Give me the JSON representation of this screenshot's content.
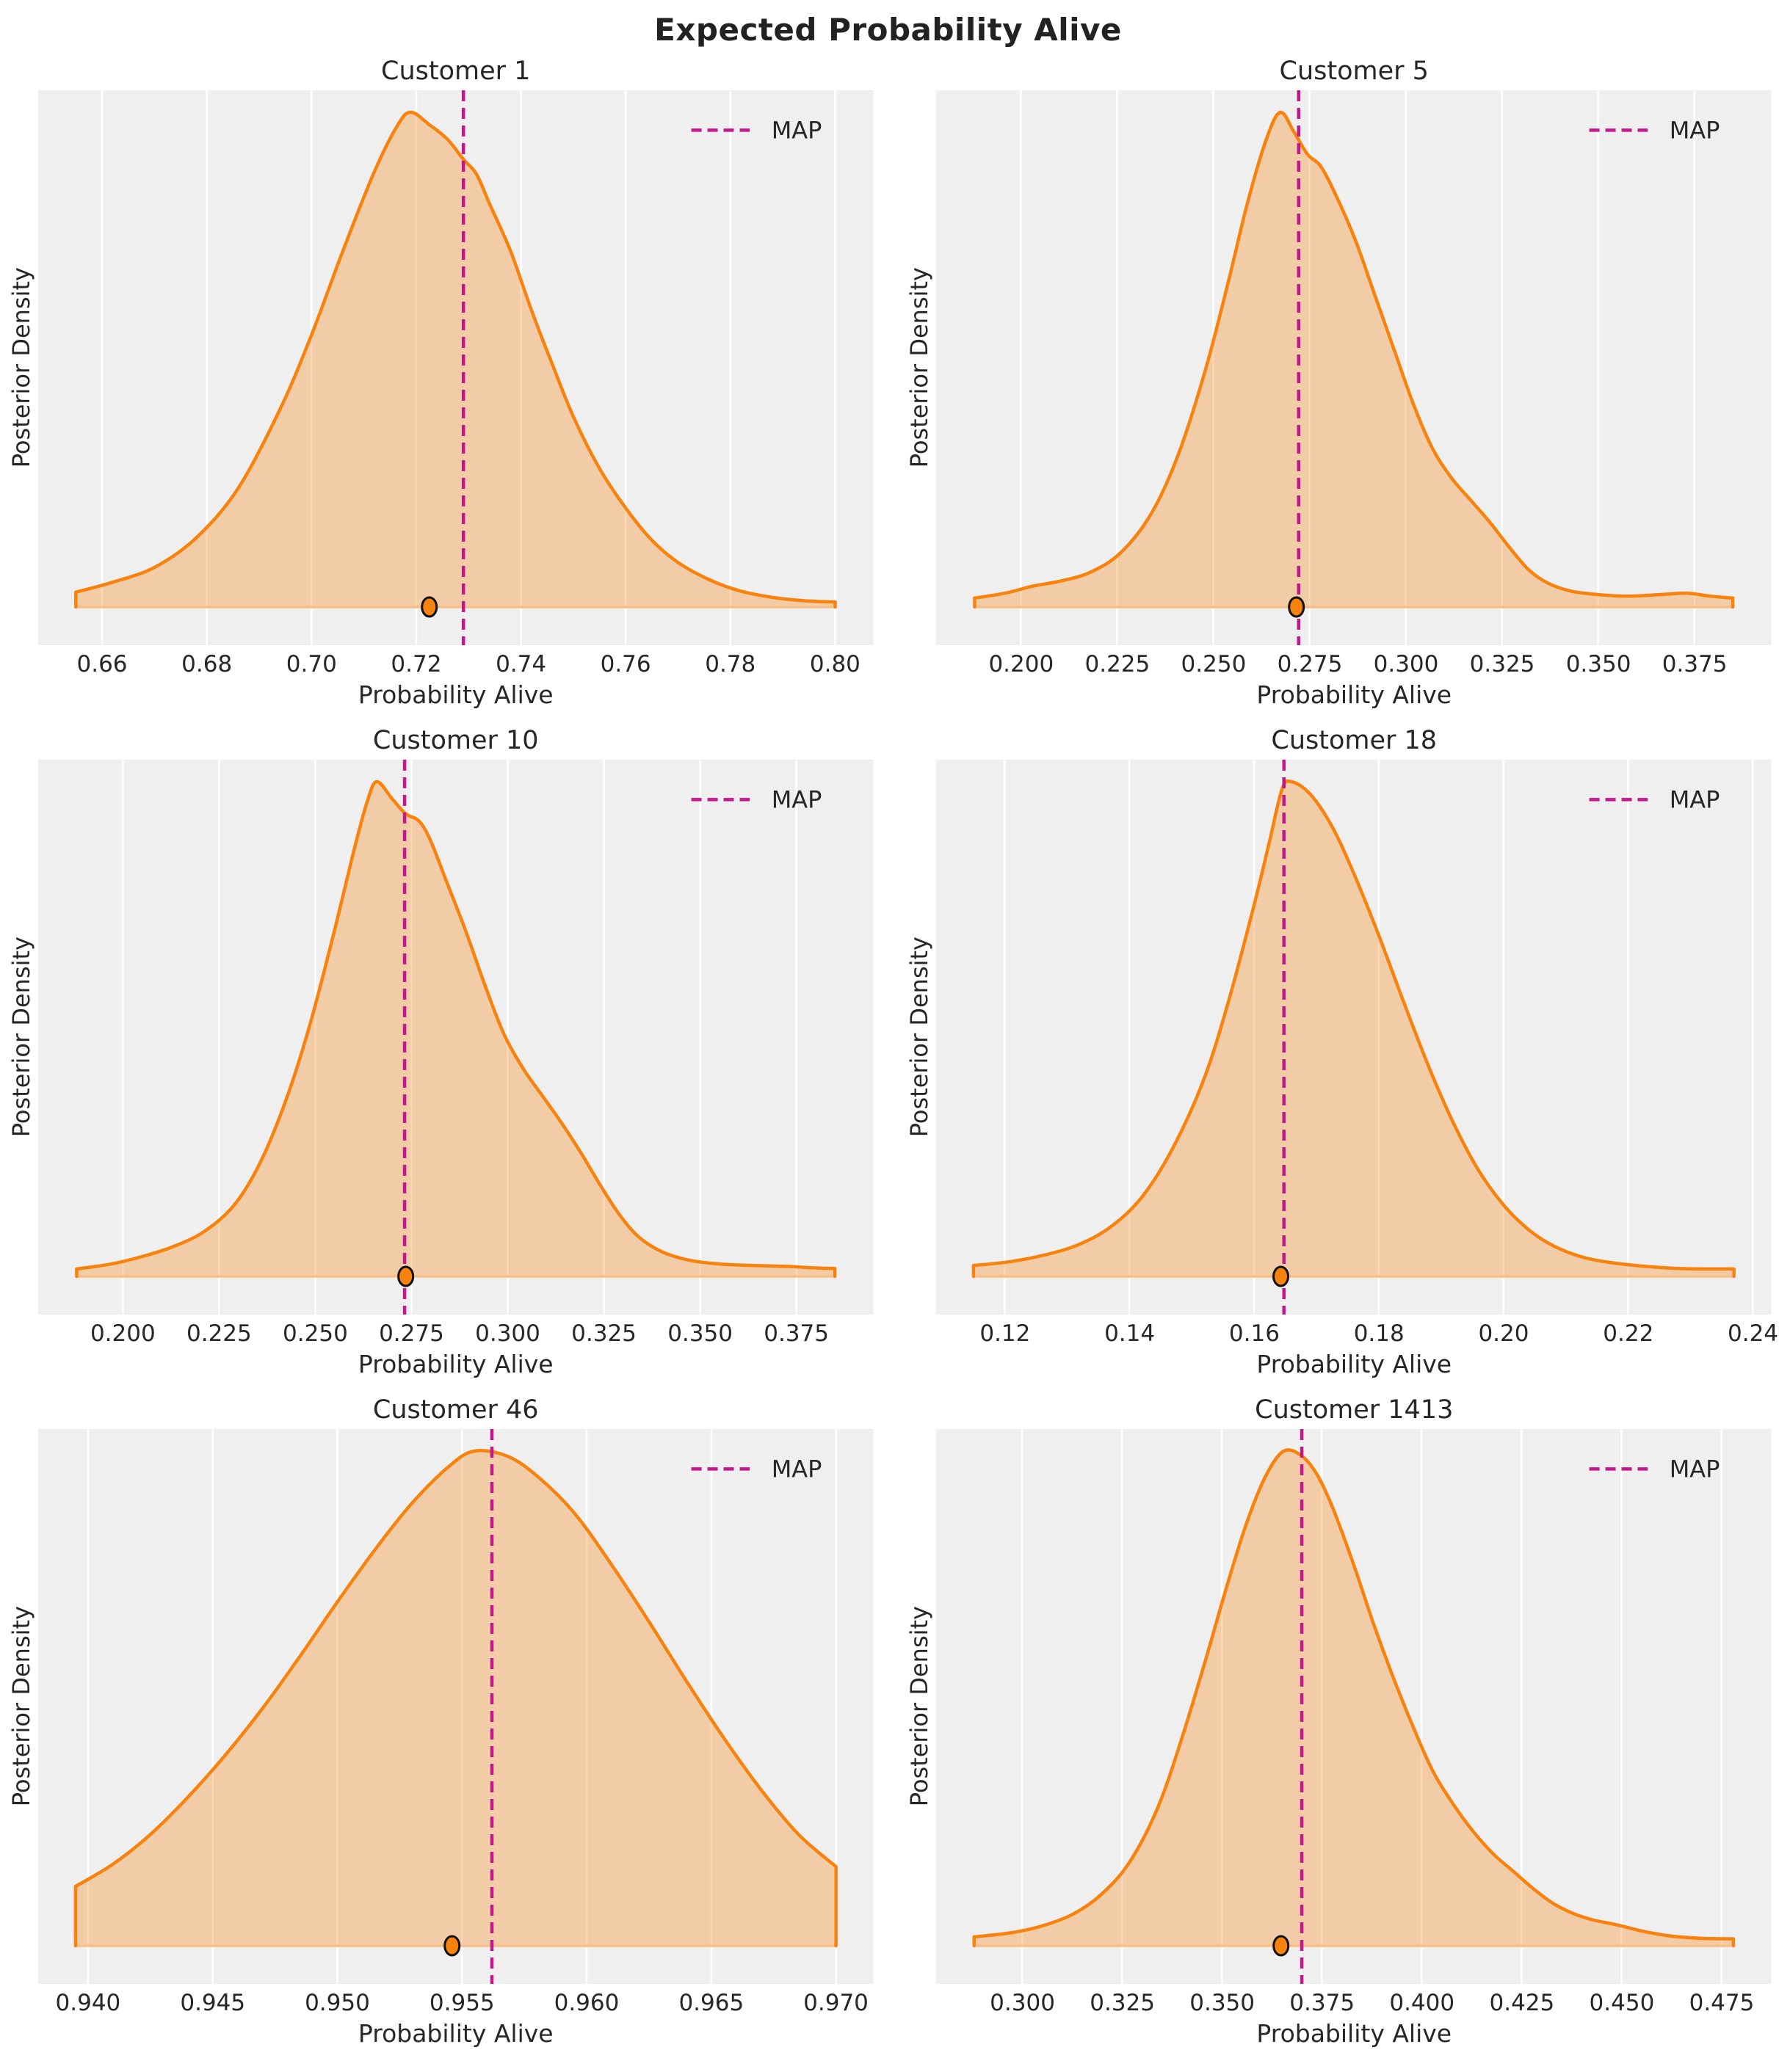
{
  "title": "Expected Probability Alive",
  "legend_label": "MAP",
  "style": {
    "curve_color": "#f8820e",
    "fill_color": "#f8820e",
    "fill_opacity": 0.32,
    "baseline_color": "#f9bd85",
    "map_line_color": "#c2188c",
    "plot_bg": "#efefef",
    "grid_color": "#ffffff",
    "text_color": "#262626",
    "marker_fill": "#f8820e",
    "marker_edge": "#111111"
  },
  "chart_data": [
    {
      "type": "area",
      "title": "Customer 1",
      "xlabel": "Probability Alive",
      "ylabel": "Posterior Density",
      "legend": "MAP",
      "xlim": [
        0.6478,
        0.8073
      ],
      "xtick_labels": [
        "0.66",
        "0.68",
        "0.70",
        "0.72",
        "0.74",
        "0.76",
        "0.78",
        "0.80"
      ],
      "xtick_values": [
        0.66,
        0.68,
        0.7,
        0.72,
        0.74,
        0.76,
        0.78,
        0.8
      ],
      "map_value": 0.729,
      "dot_value": 0.7225,
      "curve": [
        [
          0.655,
          0.03
        ],
        [
          0.662,
          0.05
        ],
        [
          0.67,
          0.08
        ],
        [
          0.678,
          0.14
        ],
        [
          0.686,
          0.24
        ],
        [
          0.694,
          0.4
        ],
        [
          0.7,
          0.55
        ],
        [
          0.706,
          0.72
        ],
        [
          0.712,
          0.88
        ],
        [
          0.7165,
          0.975
        ],
        [
          0.719,
          1.0
        ],
        [
          0.7225,
          0.975
        ],
        [
          0.726,
          0.945
        ],
        [
          0.729,
          0.905
        ],
        [
          0.7315,
          0.875
        ],
        [
          0.734,
          0.815
        ],
        [
          0.738,
          0.72
        ],
        [
          0.742,
          0.6
        ],
        [
          0.746,
          0.49
        ],
        [
          0.75,
          0.385
        ],
        [
          0.755,
          0.28
        ],
        [
          0.76,
          0.2
        ],
        [
          0.765,
          0.135
        ],
        [
          0.77,
          0.09
        ],
        [
          0.776,
          0.055
        ],
        [
          0.782,
          0.032
        ],
        [
          0.789,
          0.018
        ],
        [
          0.795,
          0.012
        ],
        [
          0.8,
          0.01
        ]
      ]
    },
    {
      "type": "area",
      "title": "Customer 5",
      "xlabel": "Probability Alive",
      "ylabel": "Posterior Density",
      "legend": "MAP",
      "xlim": [
        0.178,
        0.395
      ],
      "xtick_labels": [
        "0.200",
        "0.225",
        "0.250",
        "0.275",
        "0.300",
        "0.325",
        "0.350",
        "0.375"
      ],
      "xtick_values": [
        0.2,
        0.225,
        0.25,
        0.275,
        0.3,
        0.325,
        0.35,
        0.375
      ],
      "map_value": 0.2722,
      "dot_value": 0.2716,
      "curve": [
        [
          0.188,
          0.018
        ],
        [
          0.196,
          0.028
        ],
        [
          0.203,
          0.042
        ],
        [
          0.21,
          0.052
        ],
        [
          0.218,
          0.07
        ],
        [
          0.226,
          0.11
        ],
        [
          0.234,
          0.19
        ],
        [
          0.241,
          0.31
        ],
        [
          0.248,
          0.48
        ],
        [
          0.254,
          0.66
        ],
        [
          0.259,
          0.82
        ],
        [
          0.264,
          0.95
        ],
        [
          0.2675,
          1.0
        ],
        [
          0.271,
          0.96
        ],
        [
          0.2745,
          0.915
        ],
        [
          0.278,
          0.89
        ],
        [
          0.282,
          0.83
        ],
        [
          0.287,
          0.74
        ],
        [
          0.292,
          0.63
        ],
        [
          0.297,
          0.52
        ],
        [
          0.302,
          0.41
        ],
        [
          0.307,
          0.32
        ],
        [
          0.312,
          0.26
        ],
        [
          0.317,
          0.215
        ],
        [
          0.322,
          0.17
        ],
        [
          0.327,
          0.12
        ],
        [
          0.332,
          0.075
        ],
        [
          0.337,
          0.048
        ],
        [
          0.343,
          0.032
        ],
        [
          0.35,
          0.025
        ],
        [
          0.358,
          0.022
        ],
        [
          0.366,
          0.025
        ],
        [
          0.373,
          0.028
        ],
        [
          0.379,
          0.022
        ],
        [
          0.385,
          0.018
        ]
      ]
    },
    {
      "type": "area",
      "title": "Customer 10",
      "xlabel": "Probability Alive",
      "ylabel": "Posterior Density",
      "legend": "MAP",
      "xlim": [
        0.178,
        0.395
      ],
      "xtick_labels": [
        "0.200",
        "0.225",
        "0.250",
        "0.275",
        "0.300",
        "0.325",
        "0.350",
        "0.375"
      ],
      "xtick_values": [
        0.2,
        0.225,
        0.25,
        0.275,
        0.3,
        0.325,
        0.35,
        0.375
      ],
      "map_value": 0.2732,
      "dot_value": 0.2735,
      "curve": [
        [
          0.188,
          0.015
        ],
        [
          0.197,
          0.025
        ],
        [
          0.205,
          0.04
        ],
        [
          0.213,
          0.06
        ],
        [
          0.221,
          0.09
        ],
        [
          0.229,
          0.145
        ],
        [
          0.236,
          0.235
        ],
        [
          0.243,
          0.37
        ],
        [
          0.249,
          0.52
        ],
        [
          0.255,
          0.7
        ],
        [
          0.26,
          0.86
        ],
        [
          0.2635,
          0.96
        ],
        [
          0.266,
          1.0
        ],
        [
          0.27,
          0.965
        ],
        [
          0.2735,
          0.935
        ],
        [
          0.277,
          0.92
        ],
        [
          0.28,
          0.88
        ],
        [
          0.284,
          0.8
        ],
        [
          0.289,
          0.7
        ],
        [
          0.294,
          0.59
        ],
        [
          0.299,
          0.49
        ],
        [
          0.304,
          0.42
        ],
        [
          0.309,
          0.365
        ],
        [
          0.314,
          0.31
        ],
        [
          0.319,
          0.25
        ],
        [
          0.324,
          0.185
        ],
        [
          0.329,
          0.125
        ],
        [
          0.334,
          0.08
        ],
        [
          0.34,
          0.05
        ],
        [
          0.347,
          0.033
        ],
        [
          0.355,
          0.025
        ],
        [
          0.364,
          0.022
        ],
        [
          0.373,
          0.02
        ],
        [
          0.38,
          0.017
        ],
        [
          0.385,
          0.016
        ]
      ]
    },
    {
      "type": "area",
      "title": "Customer 18",
      "xlabel": "Probability Alive",
      "ylabel": "Posterior Density",
      "legend": "MAP",
      "xlim": [
        0.109,
        0.243
      ],
      "xtick_labels": [
        "0.12",
        "0.14",
        "0.16",
        "0.18",
        "0.20",
        "0.22",
        "0.24"
      ],
      "xtick_values": [
        0.12,
        0.14,
        0.16,
        0.18,
        0.2,
        0.22,
        0.24
      ],
      "map_value": 0.1648,
      "dot_value": 0.1643,
      "curve": [
        [
          0.115,
          0.022
        ],
        [
          0.121,
          0.03
        ],
        [
          0.127,
          0.045
        ],
        [
          0.132,
          0.065
        ],
        [
          0.137,
          0.1
        ],
        [
          0.142,
          0.16
        ],
        [
          0.147,
          0.26
        ],
        [
          0.152,
          0.4
        ],
        [
          0.156,
          0.56
        ],
        [
          0.16,
          0.75
        ],
        [
          0.1625,
          0.88
        ],
        [
          0.1645,
          0.985
        ],
        [
          0.166,
          1.0
        ],
        [
          0.169,
          0.975
        ],
        [
          0.1725,
          0.91
        ],
        [
          0.176,
          0.815
        ],
        [
          0.18,
          0.69
        ],
        [
          0.184,
          0.555
        ],
        [
          0.188,
          0.425
        ],
        [
          0.192,
          0.31
        ],
        [
          0.196,
          0.215
        ],
        [
          0.2,
          0.145
        ],
        [
          0.204,
          0.095
        ],
        [
          0.208,
          0.062
        ],
        [
          0.213,
          0.038
        ],
        [
          0.219,
          0.025
        ],
        [
          0.228,
          0.016
        ],
        [
          0.237,
          0.015
        ]
      ]
    },
    {
      "type": "area",
      "title": "Customer 46",
      "xlabel": "Probability Alive",
      "ylabel": "Posterior Density",
      "legend": "MAP",
      "xlim": [
        0.938,
        0.9715
      ],
      "xtick_labels": [
        "0.940",
        "0.945",
        "0.950",
        "0.955",
        "0.960",
        "0.965",
        "0.970"
      ],
      "xtick_values": [
        0.94,
        0.945,
        0.95,
        0.955,
        0.96,
        0.965,
        0.97
      ],
      "map_value": 0.9562,
      "dot_value": 0.9546,
      "curve": [
        [
          0.9395,
          0.12
        ],
        [
          0.941,
          0.165
        ],
        [
          0.9425,
          0.225
        ],
        [
          0.944,
          0.3
        ],
        [
          0.9455,
          0.385
        ],
        [
          0.947,
          0.48
        ],
        [
          0.9485,
          0.585
        ],
        [
          0.95,
          0.695
        ],
        [
          0.9515,
          0.8
        ],
        [
          0.953,
          0.895
        ],
        [
          0.9545,
          0.97
        ],
        [
          0.9555,
          1.0
        ],
        [
          0.9568,
          0.99
        ],
        [
          0.958,
          0.95
        ],
        [
          0.9595,
          0.875
        ],
        [
          0.961,
          0.77
        ],
        [
          0.9625,
          0.655
        ],
        [
          0.964,
          0.535
        ],
        [
          0.9655,
          0.42
        ],
        [
          0.967,
          0.315
        ],
        [
          0.9685,
          0.225
        ],
        [
          0.97,
          0.16
        ]
      ]
    },
    {
      "type": "area",
      "title": "Customer 1413",
      "xlabel": "Probability Alive",
      "ylabel": "Posterior Density",
      "legend": "MAP",
      "xlim": [
        0.2785,
        0.4875
      ],
      "xtick_labels": [
        "0.300",
        "0.325",
        "0.350",
        "0.375",
        "0.400",
        "0.425",
        "0.450",
        "0.475"
      ],
      "xtick_values": [
        0.3,
        0.325,
        0.35,
        0.375,
        0.4,
        0.425,
        0.45,
        0.475
      ],
      "map_value": 0.37,
      "dot_value": 0.3648,
      "curve": [
        [
          0.288,
          0.018
        ],
        [
          0.297,
          0.026
        ],
        [
          0.305,
          0.04
        ],
        [
          0.313,
          0.065
        ],
        [
          0.32,
          0.105
        ],
        [
          0.327,
          0.17
        ],
        [
          0.334,
          0.28
        ],
        [
          0.34,
          0.42
        ],
        [
          0.346,
          0.58
        ],
        [
          0.351,
          0.72
        ],
        [
          0.356,
          0.85
        ],
        [
          0.361,
          0.95
        ],
        [
          0.3655,
          1.0
        ],
        [
          0.37,
          0.99
        ],
        [
          0.374,
          0.95
        ],
        [
          0.378,
          0.88
        ],
        [
          0.383,
          0.77
        ],
        [
          0.388,
          0.65
        ],
        [
          0.393,
          0.54
        ],
        [
          0.398,
          0.44
        ],
        [
          0.403,
          0.35
        ],
        [
          0.408,
          0.285
        ],
        [
          0.413,
          0.23
        ],
        [
          0.418,
          0.185
        ],
        [
          0.423,
          0.15
        ],
        [
          0.428,
          0.115
        ],
        [
          0.433,
          0.085
        ],
        [
          0.438,
          0.065
        ],
        [
          0.443,
          0.052
        ],
        [
          0.449,
          0.042
        ],
        [
          0.455,
          0.03
        ],
        [
          0.462,
          0.02
        ],
        [
          0.47,
          0.015
        ],
        [
          0.478,
          0.014
        ]
      ]
    }
  ]
}
